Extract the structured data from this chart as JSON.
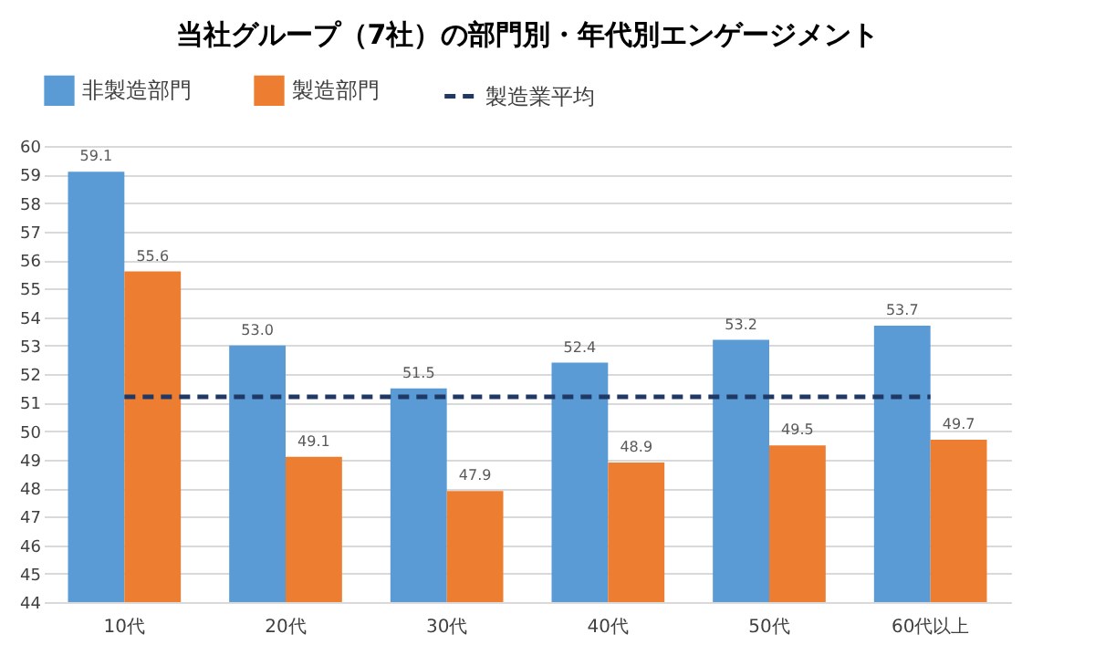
{
  "chart_data": {
    "type": "bar",
    "title": "当社グループ（7社）の部門別・年代別エンゲージメント",
    "categories": [
      "10代",
      "20代",
      "30代",
      "40代",
      "50代",
      "60代以上"
    ],
    "series": [
      {
        "name": "非製造部門",
        "color": "#5b9bd5",
        "values": [
          59.1,
          53.0,
          51.5,
          52.4,
          53.2,
          53.7
        ],
        "value_labels": [
          "59.1",
          "53.0",
          "51.5",
          "52.4",
          "53.2",
          "53.7"
        ]
      },
      {
        "name": "製造部門",
        "color": "#ed7d31",
        "values": [
          55.6,
          49.1,
          47.9,
          48.9,
          49.5,
          49.7
        ],
        "value_labels": [
          "55.6",
          "49.1",
          "47.9",
          "48.9",
          "49.5",
          "49.7"
        ]
      },
      {
        "name": "製造業平均",
        "type": "line",
        "color": "#1f3864",
        "line_style": "dashed",
        "values": [
          51.2,
          51.2,
          51.2,
          51.2,
          51.2,
          51.2
        ]
      }
    ],
    "ylim": [
      44,
      60
    ],
    "yticks": [
      44,
      45,
      46,
      47,
      48,
      49,
      50,
      51,
      52,
      53,
      54,
      55,
      56,
      57,
      58,
      59,
      60
    ],
    "grid": "y",
    "legend": "top"
  }
}
